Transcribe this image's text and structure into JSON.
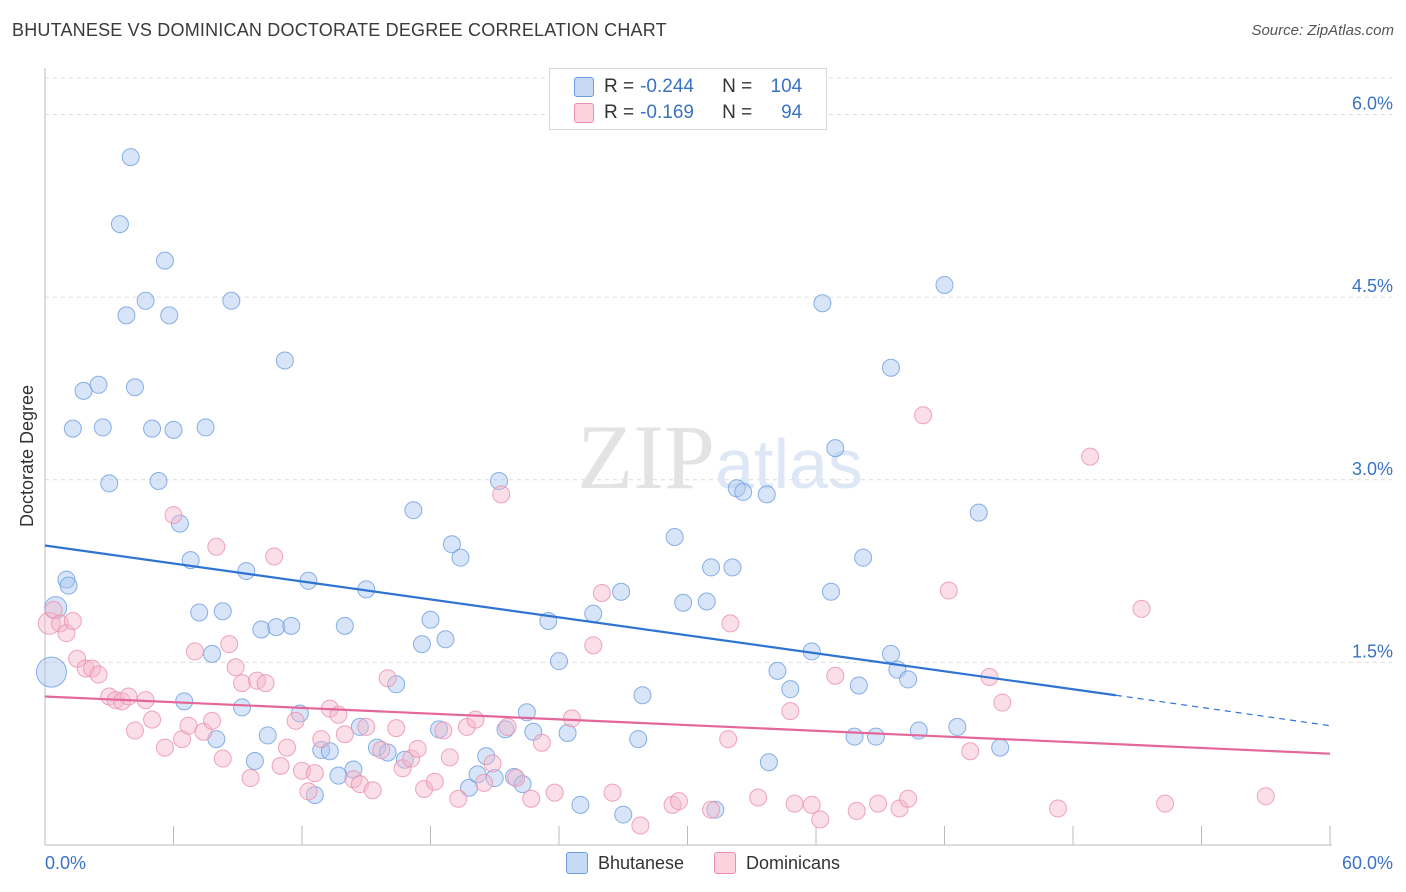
{
  "title": "BHUTANESE VS DOMINICAN DOCTORATE DEGREE CORRELATION CHART",
  "source": "Source: ZipAtlas.com",
  "watermark": "ZIPatlas",
  "legend": {
    "rows": [
      {
        "r_label": "R =",
        "r_value": "-0.244",
        "n_label": "N =",
        "n_value": "104",
        "color": "#a9c6ef"
      },
      {
        "r_label": "R =",
        "r_value": "-0.169",
        "n_label": "N =",
        "n_value": "94",
        "color": "#f5b8cb"
      }
    ]
  },
  "bottom_legend": [
    {
      "label": "Bhutanese",
      "color": "#a9c6ef"
    },
    {
      "label": "Dominicans",
      "color": "#f5b8cb"
    }
  ],
  "chart_data": {
    "type": "scatter",
    "title": "BHUTANESE VS DOMINICAN DOCTORATE DEGREE CORRELATION CHART",
    "xlabel": "",
    "ylabel": "Doctorate Degree",
    "xlim": [
      0,
      60
    ],
    "ylim": [
      0,
      6.3
    ],
    "x_tick_labels": [
      "0.0%",
      "60.0%"
    ],
    "y_ticks": [
      1.5,
      3.0,
      4.5,
      6.0
    ],
    "y_tick_labels": [
      "1.5%",
      "3.0%",
      "4.5%",
      "6.0%"
    ],
    "grid": "horizontal dashed",
    "series": [
      {
        "name": "Bhutanese",
        "color": "#a9c6ef",
        "stroke": "#6b9de0",
        "trend": {
          "x0": 0,
          "y0": 2.46,
          "x1": 50,
          "y1": 1.23,
          "dashed_to_x": 60,
          "dashed_to_y": 0.98,
          "color": "#2f73d3"
        },
        "points": [
          [
            0.3,
            1.42,
            3
          ],
          [
            0.5,
            1.95,
            2
          ],
          [
            1.0,
            2.18,
            1
          ],
          [
            1.1,
            2.13,
            1
          ],
          [
            1.3,
            3.42,
            1
          ],
          [
            1.8,
            3.73,
            1
          ],
          [
            2.5,
            3.78,
            1
          ],
          [
            2.7,
            3.43,
            1
          ],
          [
            3.0,
            2.97,
            1
          ],
          [
            3.5,
            5.1,
            1
          ],
          [
            3.8,
            4.35,
            1
          ],
          [
            4.0,
            5.65,
            1
          ],
          [
            4.2,
            3.76,
            1
          ],
          [
            4.7,
            4.47,
            1
          ],
          [
            5.0,
            3.42,
            1
          ],
          [
            5.3,
            2.99,
            1
          ],
          [
            5.6,
            4.8,
            1
          ],
          [
            5.8,
            4.35,
            1
          ],
          [
            6.0,
            3.41,
            1
          ],
          [
            6.3,
            2.64,
            1
          ],
          [
            6.5,
            1.18,
            1
          ],
          [
            6.8,
            2.34,
            1
          ],
          [
            7.2,
            1.91,
            1
          ],
          [
            7.5,
            3.43,
            1
          ],
          [
            7.8,
            1.57,
            1
          ],
          [
            8.0,
            0.87,
            1
          ],
          [
            8.3,
            1.92,
            1
          ],
          [
            8.7,
            4.47,
            1
          ],
          [
            9.2,
            1.13,
            1
          ],
          [
            9.4,
            2.25,
            1
          ],
          [
            9.8,
            0.69,
            1
          ],
          [
            10.1,
            1.77,
            1
          ],
          [
            10.4,
            0.9,
            1
          ],
          [
            10.8,
            1.79,
            1
          ],
          [
            11.2,
            3.98,
            1
          ],
          [
            11.5,
            1.8,
            1
          ],
          [
            11.9,
            1.08,
            1
          ],
          [
            12.3,
            2.17,
            1
          ],
          [
            12.6,
            0.41,
            1
          ],
          [
            12.9,
            0.78,
            1
          ],
          [
            13.3,
            0.77,
            1
          ],
          [
            13.7,
            0.57,
            1
          ],
          [
            14.0,
            1.8,
            1
          ],
          [
            14.4,
            0.62,
            1
          ],
          [
            14.7,
            0.97,
            1
          ],
          [
            15.0,
            2.1,
            1
          ],
          [
            15.5,
            0.8,
            1
          ],
          [
            16.0,
            0.76,
            1
          ],
          [
            16.4,
            1.32,
            1
          ],
          [
            16.8,
            0.7,
            1
          ],
          [
            17.2,
            2.75,
            1
          ],
          [
            17.6,
            1.65,
            1
          ],
          [
            18.0,
            1.85,
            1
          ],
          [
            18.4,
            0.95,
            1
          ],
          [
            18.7,
            1.69,
            1
          ],
          [
            19.0,
            2.47,
            1
          ],
          [
            19.4,
            2.36,
            1
          ],
          [
            19.8,
            0.47,
            1
          ],
          [
            20.2,
            0.58,
            1
          ],
          [
            20.6,
            0.73,
            1
          ],
          [
            21.0,
            0.55,
            1
          ],
          [
            21.2,
            2.99,
            1
          ],
          [
            21.5,
            0.95,
            1
          ],
          [
            21.9,
            0.56,
            1
          ],
          [
            22.3,
            0.5,
            1
          ],
          [
            22.5,
            1.09,
            1
          ],
          [
            22.8,
            0.93,
            1
          ],
          [
            23.5,
            1.84,
            1
          ],
          [
            24.0,
            1.51,
            1
          ],
          [
            24.4,
            0.92,
            1
          ],
          [
            25.0,
            0.33,
            1
          ],
          [
            25.6,
            1.9,
            1
          ],
          [
            26.9,
            2.08,
            1
          ],
          [
            27.0,
            0.25,
            1
          ],
          [
            27.7,
            0.87,
            1
          ],
          [
            27.9,
            1.23,
            1
          ],
          [
            29.4,
            2.53,
            1
          ],
          [
            29.8,
            1.99,
            1
          ],
          [
            30.9,
            2.0,
            1
          ],
          [
            31.1,
            2.28,
            1
          ],
          [
            31.3,
            0.29,
            1
          ],
          [
            32.1,
            2.28,
            1
          ],
          [
            32.3,
            2.93,
            1
          ],
          [
            32.6,
            2.9,
            1
          ],
          [
            33.7,
            2.88,
            1
          ],
          [
            33.8,
            0.68,
            1
          ],
          [
            34.2,
            1.43,
            1
          ],
          [
            34.8,
            1.28,
            1
          ],
          [
            35.8,
            1.59,
            1
          ],
          [
            36.3,
            4.45,
            1
          ],
          [
            36.7,
            2.08,
            1
          ],
          [
            36.9,
            3.26,
            1
          ],
          [
            37.8,
            0.89,
            1
          ],
          [
            38.0,
            1.31,
            1
          ],
          [
            38.2,
            2.36,
            1
          ],
          [
            38.8,
            0.89,
            1
          ],
          [
            39.5,
            1.57,
            1
          ],
          [
            39.5,
            3.92,
            1
          ],
          [
            39.8,
            1.44,
            1
          ],
          [
            40.3,
            1.36,
            1
          ],
          [
            40.8,
            0.94,
            1
          ],
          [
            42.6,
            0.97,
            1
          ],
          [
            43.6,
            2.73,
            1
          ],
          [
            44.6,
            0.8,
            1
          ],
          [
            42.0,
            4.6,
            1
          ]
        ]
      },
      {
        "name": "Dominicans",
        "color": "#f5b8cb",
        "stroke": "#ec8fab",
        "trend": {
          "x0": 0,
          "y0": 1.22,
          "x1": 60,
          "y1": 0.75,
          "color": "#e4679a"
        },
        "points": [
          [
            0.2,
            1.82,
            2
          ],
          [
            0.4,
            1.93,
            1
          ],
          [
            0.7,
            1.82,
            1
          ],
          [
            1.0,
            1.74,
            1
          ],
          [
            1.3,
            1.84,
            1
          ],
          [
            1.5,
            1.53,
            1
          ],
          [
            1.9,
            1.45,
            1
          ],
          [
            2.2,
            1.45,
            1
          ],
          [
            2.5,
            1.4,
            1
          ],
          [
            3.0,
            1.22,
            1
          ],
          [
            3.3,
            1.19,
            1
          ],
          [
            3.6,
            1.18,
            1
          ],
          [
            3.9,
            1.22,
            1
          ],
          [
            4.2,
            0.94,
            1
          ],
          [
            4.7,
            1.19,
            1
          ],
          [
            5.0,
            1.03,
            1
          ],
          [
            5.6,
            0.8,
            1
          ],
          [
            6.0,
            2.71,
            1
          ],
          [
            6.4,
            0.87,
            1
          ],
          [
            6.7,
            0.98,
            1
          ],
          [
            7.0,
            1.59,
            1
          ],
          [
            7.4,
            0.93,
            1
          ],
          [
            7.8,
            1.02,
            1
          ],
          [
            8.0,
            2.45,
            1
          ],
          [
            8.3,
            0.71,
            1
          ],
          [
            8.6,
            1.65,
            1
          ],
          [
            8.9,
            1.46,
            1
          ],
          [
            9.2,
            1.33,
            1
          ],
          [
            9.6,
            0.55,
            1
          ],
          [
            9.9,
            1.35,
            1
          ],
          [
            10.3,
            1.33,
            1
          ],
          [
            10.7,
            2.37,
            1
          ],
          [
            11.0,
            0.65,
            1
          ],
          [
            11.3,
            0.8,
            1
          ],
          [
            11.7,
            1.02,
            1
          ],
          [
            12.0,
            0.61,
            1
          ],
          [
            12.3,
            0.44,
            1
          ],
          [
            12.6,
            0.59,
            1
          ],
          [
            12.9,
            0.87,
            1
          ],
          [
            13.3,
            1.12,
            1
          ],
          [
            13.7,
            1.07,
            1
          ],
          [
            14.0,
            0.91,
            1
          ],
          [
            14.4,
            0.54,
            1
          ],
          [
            14.7,
            0.5,
            1
          ],
          [
            15.0,
            0.97,
            1
          ],
          [
            15.3,
            0.45,
            1
          ],
          [
            15.7,
            0.78,
            1
          ],
          [
            16.0,
            1.37,
            1
          ],
          [
            16.4,
            0.96,
            1
          ],
          [
            16.7,
            0.63,
            1
          ],
          [
            17.1,
            0.71,
            1
          ],
          [
            17.4,
            0.79,
            1
          ],
          [
            17.7,
            0.46,
            1
          ],
          [
            18.2,
            0.52,
            1
          ],
          [
            18.6,
            0.94,
            1
          ],
          [
            18.9,
            0.72,
            1
          ],
          [
            19.3,
            0.38,
            1
          ],
          [
            19.7,
            0.97,
            1
          ],
          [
            20.1,
            1.03,
            1
          ],
          [
            20.5,
            0.51,
            1
          ],
          [
            20.9,
            0.67,
            1
          ],
          [
            21.3,
            2.88,
            1
          ],
          [
            21.6,
            0.97,
            1
          ],
          [
            22.0,
            0.55,
            1
          ],
          [
            22.7,
            0.38,
            1
          ],
          [
            23.2,
            0.84,
            1
          ],
          [
            23.8,
            0.43,
            1
          ],
          [
            24.6,
            1.04,
            1
          ],
          [
            25.6,
            1.64,
            1
          ],
          [
            26.0,
            2.07,
            1
          ],
          [
            26.5,
            0.43,
            1
          ],
          [
            27.8,
            0.16,
            1
          ],
          [
            29.3,
            0.33,
            1
          ],
          [
            29.6,
            0.36,
            1
          ],
          [
            31.1,
            0.29,
            1
          ],
          [
            31.9,
            0.87,
            1
          ],
          [
            32.0,
            1.82,
            1
          ],
          [
            33.3,
            0.39,
            1
          ],
          [
            34.8,
            1.1,
            1
          ],
          [
            35.0,
            0.34,
            1
          ],
          [
            35.8,
            0.33,
            1
          ],
          [
            36.2,
            0.21,
            1
          ],
          [
            36.9,
            1.39,
            1
          ],
          [
            37.9,
            0.28,
            1
          ],
          [
            38.9,
            0.34,
            1
          ],
          [
            39.9,
            0.3,
            1
          ],
          [
            40.3,
            0.38,
            1
          ],
          [
            41.0,
            3.53,
            1
          ],
          [
            42.2,
            2.09,
            1
          ],
          [
            43.2,
            0.77,
            1
          ],
          [
            44.1,
            1.38,
            1
          ],
          [
            44.7,
            1.17,
            1
          ],
          [
            47.3,
            0.3,
            1
          ],
          [
            48.8,
            3.19,
            1
          ],
          [
            51.2,
            1.94,
            1
          ],
          [
            52.3,
            0.34,
            1
          ],
          [
            57.0,
            0.4,
            1
          ]
        ]
      }
    ]
  }
}
